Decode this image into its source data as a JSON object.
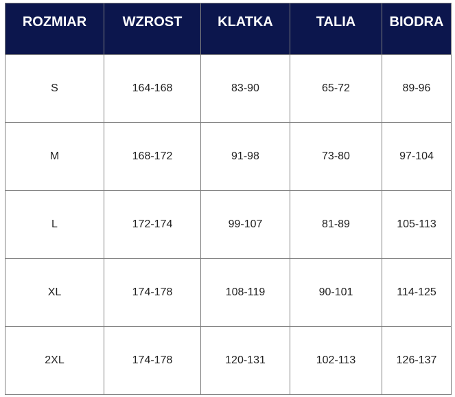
{
  "headers": [
    "ROZMIAR",
    "WZROST",
    "KLATKA",
    "TALIA",
    "BIODRA"
  ],
  "rows": [
    [
      "S",
      "164-168",
      "83-90",
      "65-72",
      "89-96"
    ],
    [
      "M",
      "168-172",
      "91-98",
      "73-80",
      "97-104"
    ],
    [
      "L",
      "172-174",
      "99-107",
      "81-89",
      "105-113"
    ],
    [
      "XL",
      "174-178",
      "108-119",
      "90-101",
      "114-125"
    ],
    [
      "2XL",
      "174-178",
      "120-131",
      "102-113",
      "126-137"
    ]
  ],
  "colors": {
    "header_bg": "#0c164d",
    "header_text": "#ffffff",
    "border": "#7f7f7f"
  }
}
